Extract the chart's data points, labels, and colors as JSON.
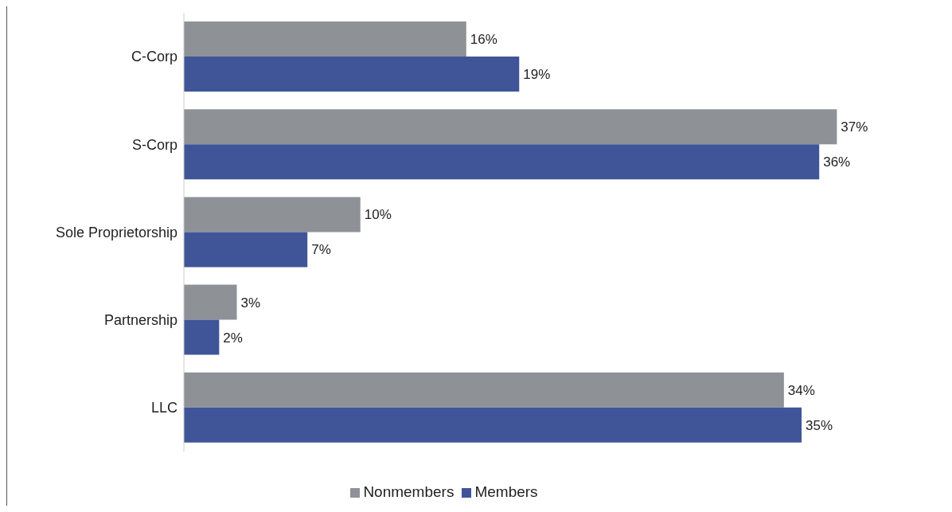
{
  "chart_data": {
    "type": "bar",
    "orientation": "horizontal",
    "categories": [
      "C-Corp",
      "S-Corp",
      "Sole Proprietorship",
      "Partnership",
      "LLC"
    ],
    "series": [
      {
        "name": "Nonmembers",
        "color": "#8e9196",
        "type": "bar",
        "values": [
          16,
          37,
          10,
          3,
          34
        ],
        "value_labels": [
          "16%",
          "37%",
          "10%",
          "3%",
          "34%"
        ]
      },
      {
        "name": "Members",
        "color": "#3f5597",
        "type": "bar",
        "values": [
          19,
          36,
          7,
          2,
          35
        ],
        "value_labels": [
          "19%",
          "36%",
          "7%",
          "2%",
          "35%"
        ]
      }
    ],
    "legend": "bottom"
  }
}
